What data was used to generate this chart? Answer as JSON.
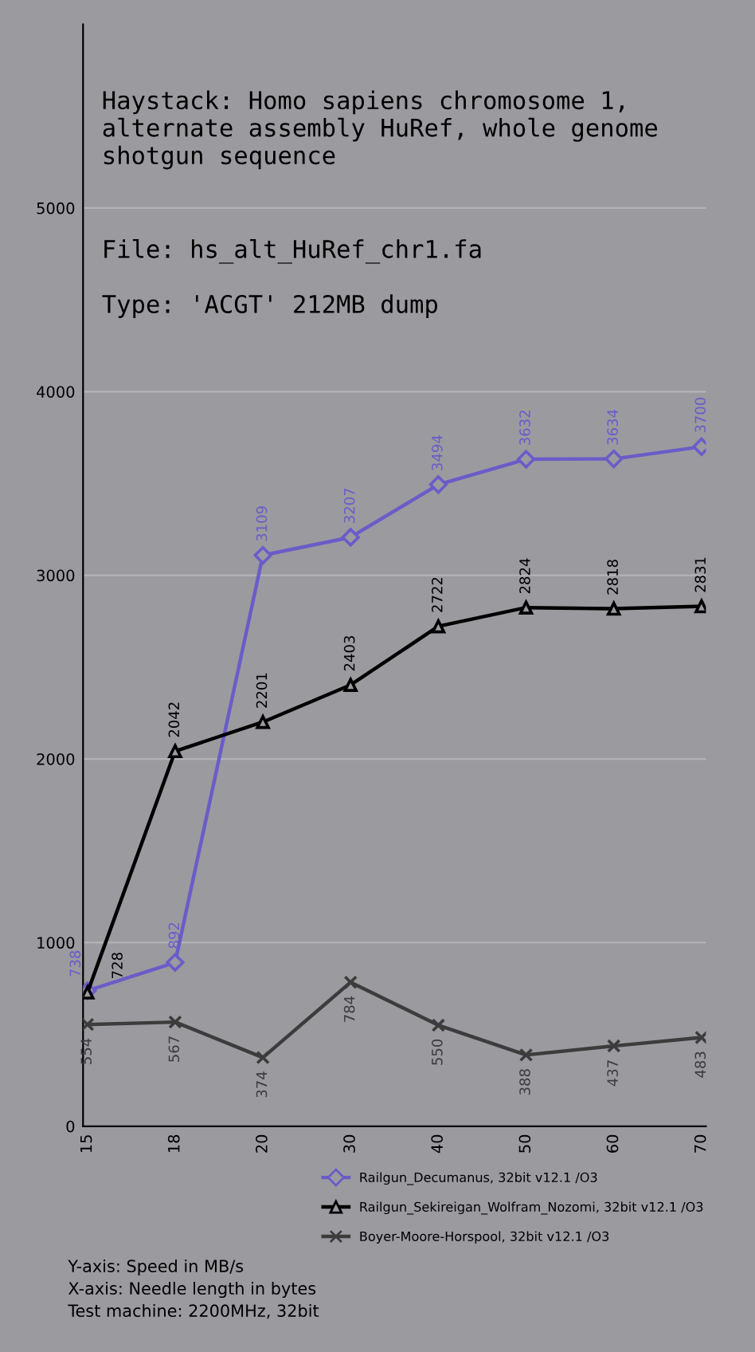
{
  "chart_data": {
    "type": "line",
    "title": "Haystack: Homo sapiens chromosome 1, alternate assembly HuRef, whole genome shotgun sequence",
    "subtitle": "File: hs_alt_HuRef_chr1.fa",
    "annotations": [
      "Type: 'ACGT' 212MB dump",
      "Y-axis: Speed in MB/s",
      "X-axis: Needle length in bytes",
      "Test machine: 2200MHz, 32bit"
    ],
    "categories": [
      "15",
      "18",
      "20",
      "30",
      "40",
      "50",
      "60",
      "70"
    ],
    "ylim": [
      0,
      6000
    ],
    "yticks": [
      0,
      1000,
      2000,
      3000,
      4000,
      5000
    ],
    "grid": "y",
    "legend": "bottom",
    "data_labels": true,
    "line_style": "solid",
    "series": [
      {
        "name": "Railgun_Decumanus, 32bit v12.1 /O3",
        "color": "#6a5cc8",
        "marker": "diamond",
        "values": [
          738,
          892,
          3109,
          3207,
          3494,
          3632,
          3634,
          3700
        ]
      },
      {
        "name": "Railgun_Sekireigan_Wolfram_Nozomi, 32bit v12.1 /O3",
        "color": "#000000",
        "marker": "triangle",
        "values": [
          728,
          2042,
          2201,
          2403,
          2722,
          2824,
          2818,
          2831
        ]
      },
      {
        "name": "Boyer-Moore-Horspool, 32bit v12.1 /O3",
        "color": "#3c3c3c",
        "marker": "cross",
        "values": [
          554,
          567,
          374,
          784,
          550,
          388,
          437,
          483
        ]
      }
    ]
  }
}
